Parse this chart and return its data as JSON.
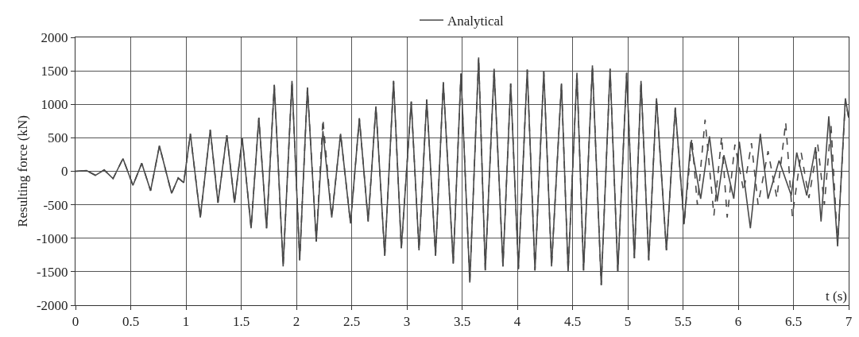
{
  "chart_data": {
    "type": "line",
    "ylabel": "Resulting force (kN)",
    "xlabel": "t (s)",
    "xlim": [
      0,
      7
    ],
    "ylim": [
      -2000,
      2000
    ],
    "xticks": [
      0,
      0.5,
      1,
      1.5,
      2,
      2.5,
      3,
      3.5,
      4,
      4.5,
      5,
      5.5,
      6,
      6.5,
      7
    ],
    "yticks": [
      -2000,
      -1500,
      -1000,
      -500,
      0,
      500,
      1000,
      1500,
      2000
    ],
    "grid": true,
    "legend": "top",
    "marker": "none",
    "series": [
      {
        "color": "#4a4a4a",
        "line_style": "dashed",
        "x": [
          0,
          0.1,
          0.18,
          0.26,
          0.34,
          0.43,
          0.52,
          0.6,
          0.68,
          0.76,
          0.87,
          0.93,
          0.98,
          1.04,
          1.13,
          1.22,
          1.29,
          1.37,
          1.44,
          1.51,
          1.59,
          1.66,
          1.73,
          1.8,
          1.88,
          1.96,
          2.03,
          2.1,
          2.18,
          2.24,
          2.32,
          2.4,
          2.49,
          2.57,
          2.65,
          2.72,
          2.8,
          2.88,
          2.95,
          3.04,
          3.11,
          3.18,
          3.26,
          3.33,
          3.42,
          3.49,
          3.57,
          3.65,
          3.71,
          3.79,
          3.87,
          3.94,
          4.01,
          4.09,
          4.16,
          4.24,
          4.31,
          4.4,
          4.46,
          4.54,
          4.6,
          4.68,
          4.76,
          4.84,
          4.91,
          4.99,
          5.06,
          5.12,
          5.19,
          5.26,
          5.35,
          5.43,
          5.51,
          5.58,
          5.63,
          5.7,
          5.78,
          5.85,
          5.9,
          5.97,
          6.05,
          6.12,
          6.18,
          6.27,
          6.35,
          6.43,
          6.49,
          6.57,
          6.64,
          6.72,
          6.78,
          6.84,
          6.9,
          6.97,
          7.0
        ],
        "values": [
          0,
          10,
          -60,
          20,
          -110,
          190,
          -210,
          120,
          -290,
          380,
          -330,
          -100,
          -170,
          560,
          -690,
          620,
          -470,
          540,
          -470,
          490,
          -850,
          800,
          -850,
          1290,
          -1420,
          1350,
          -1330,
          1250,
          -1050,
          780,
          -690,
          560,
          -780,
          790,
          -750,
          970,
          -1260,
          1350,
          -1150,
          1040,
          -1180,
          1070,
          -1260,
          1330,
          -1380,
          1460,
          -1660,
          1700,
          -1480,
          1530,
          -1420,
          1310,
          -1460,
          1520,
          -1480,
          1490,
          -1420,
          1310,
          -1500,
          1470,
          -1480,
          1580,
          -1700,
          1530,
          -1500,
          1470,
          -1300,
          1350,
          -1330,
          1090,
          -1180,
          950,
          -800,
          500,
          -500,
          770,
          -660,
          520,
          -690,
          400,
          -300,
          420,
          -500,
          300,
          -400,
          730,
          -670,
          280,
          -400,
          400,
          -500,
          700,
          -1100,
          1050,
          800
        ]
      },
      {
        "name": "Analytical",
        "color": "#4a4a4a",
        "line_style": "solid",
        "x": [
          0,
          0.1,
          0.18,
          0.26,
          0.34,
          0.43,
          0.52,
          0.6,
          0.68,
          0.76,
          0.87,
          0.93,
          0.98,
          1.04,
          1.13,
          1.22,
          1.29,
          1.37,
          1.44,
          1.51,
          1.59,
          1.66,
          1.73,
          1.8,
          1.88,
          1.96,
          2.03,
          2.1,
          2.18,
          2.24,
          2.32,
          2.4,
          2.49,
          2.57,
          2.65,
          2.72,
          2.8,
          2.88,
          2.95,
          3.04,
          3.11,
          3.18,
          3.26,
          3.33,
          3.42,
          3.49,
          3.57,
          3.65,
          3.71,
          3.79,
          3.87,
          3.94,
          4.01,
          4.09,
          4.16,
          4.24,
          4.31,
          4.4,
          4.46,
          4.54,
          4.6,
          4.68,
          4.76,
          4.84,
          4.91,
          4.99,
          5.06,
          5.12,
          5.19,
          5.26,
          5.35,
          5.43,
          5.51,
          5.57,
          5.66,
          5.74,
          5.81,
          5.87,
          5.96,
          6.01,
          6.11,
          6.2,
          6.27,
          6.37,
          6.48,
          6.53,
          6.62,
          6.7,
          6.75,
          6.82,
          6.9,
          6.97,
          7.0
        ],
        "values": [
          0,
          10,
          -60,
          20,
          -110,
          190,
          -210,
          120,
          -290,
          380,
          -330,
          -100,
          -170,
          560,
          -690,
          620,
          -470,
          540,
          -470,
          490,
          -850,
          800,
          -850,
          1290,
          -1420,
          1350,
          -1330,
          1250,
          -1050,
          600,
          -690,
          560,
          -780,
          790,
          -750,
          970,
          -1260,
          1350,
          -1150,
          1040,
          -1180,
          1070,
          -1260,
          1330,
          -1380,
          1460,
          -1660,
          1700,
          -1480,
          1530,
          -1420,
          1310,
          -1460,
          1520,
          -1480,
          1490,
          -1420,
          1310,
          -1500,
          1470,
          -1480,
          1580,
          -1700,
          1530,
          -1500,
          1470,
          -1300,
          1350,
          -1330,
          1090,
          -1180,
          950,
          -780,
          440,
          -410,
          520,
          -450,
          240,
          -410,
          440,
          -850,
          560,
          -410,
          160,
          -360,
          280,
          -360,
          360,
          -750,
          820,
          -1120,
          1090,
          800
        ]
      }
    ]
  }
}
